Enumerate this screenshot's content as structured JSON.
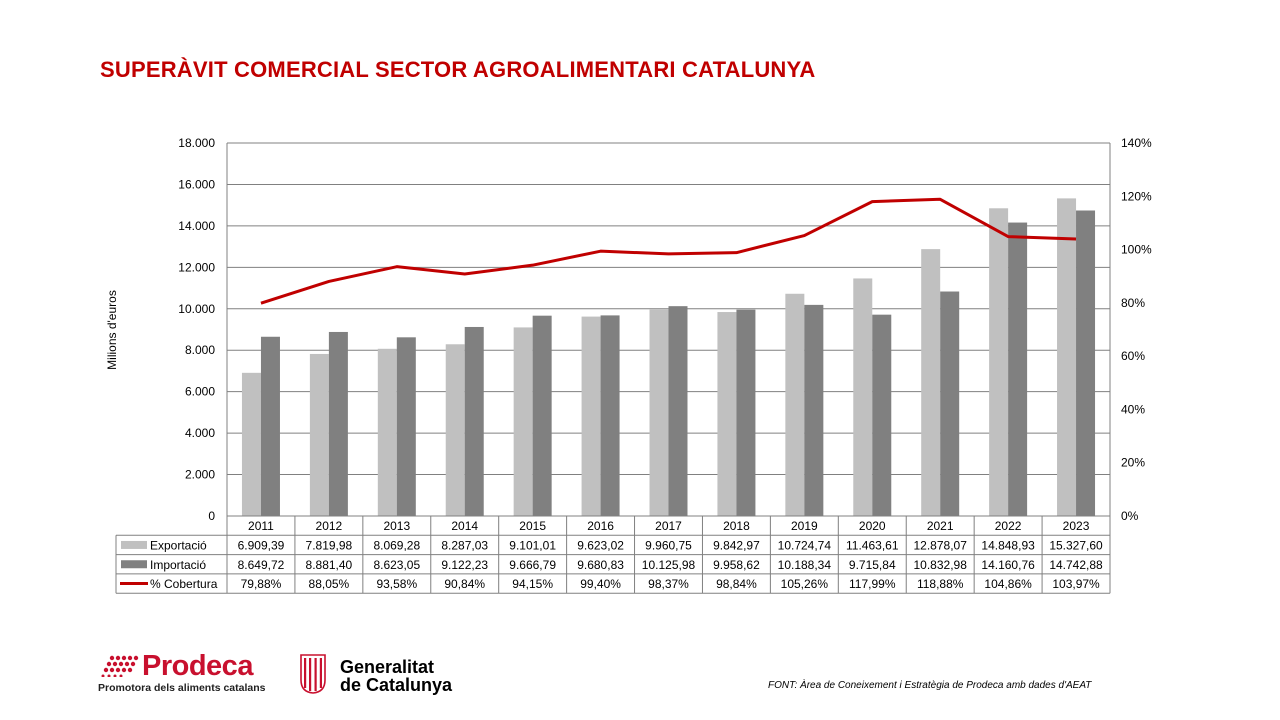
{
  "title": "SUPERÀVIT COMERCIAL SECTOR AGROALIMENTARI CATALUNYA",
  "source": "FONT:  Àrea de Coneixement i Estratègia de Prodeca amb dades d'AEAT",
  "logos": {
    "prodeca_name": "Prodeca",
    "prodeca_tagline": "Promotora dels aliments catalans",
    "gencat_line1": "Generalitat",
    "gencat_line2": "de Catalunya"
  },
  "colors": {
    "title": "#c00000",
    "exportacio": "#c0c0c0",
    "importacio": "#808080",
    "cobertura": "#c00000"
  },
  "chart_data": {
    "type": "bar",
    "ylabel": "Milions d'euros",
    "ylim": [
      0,
      18000
    ],
    "y_ticks": [
      "0",
      "2.000",
      "4.000",
      "6.000",
      "8.000",
      "10.000",
      "12.000",
      "14.000",
      "16.000",
      "18.000"
    ],
    "y2lim": [
      0,
      140
    ],
    "y2_ticks": [
      "0%",
      "20%",
      "40%",
      "60%",
      "80%",
      "100%",
      "120%",
      "140%"
    ],
    "grid": true,
    "categories": [
      "2011",
      "2012",
      "2013",
      "2014",
      "2015",
      "2016",
      "2017",
      "2018",
      "2019",
      "2020",
      "2021",
      "2022",
      "2023"
    ],
    "series": [
      {
        "name": "Exportació",
        "type": "bar",
        "values": [
          6909.39,
          7819.98,
          8069.28,
          8287.03,
          9101.01,
          9623.02,
          9960.75,
          9842.97,
          10724.74,
          11463.61,
          12878.07,
          14848.93,
          15327.6
        ],
        "labels": [
          "6.909,39",
          "7.819,98",
          "8.069,28",
          "8.287,03",
          "9.101,01",
          "9.623,02",
          "9.960,75",
          "9.842,97",
          "10.724,74",
          "11.463,61",
          "12.878,07",
          "14.848,93",
          "15.327,60"
        ]
      },
      {
        "name": "Importació",
        "type": "bar",
        "values": [
          8649.72,
          8881.4,
          8623.05,
          9122.23,
          9666.79,
          9680.83,
          10125.98,
          9958.62,
          10188.34,
          9715.84,
          10832.98,
          14160.76,
          14742.88
        ],
        "labels": [
          "8.649,72",
          "8.881,40",
          "8.623,05",
          "9.122,23",
          "9.666,79",
          "9.680,83",
          "10.125,98",
          "9.958,62",
          "10.188,34",
          "9.715,84",
          "10.832,98",
          "14.160,76",
          "14.742,88"
        ]
      },
      {
        "name": "% Cobertura",
        "type": "line",
        "axis": "right",
        "values": [
          79.88,
          88.05,
          93.58,
          90.84,
          94.15,
          99.4,
          98.37,
          98.84,
          105.26,
          117.99,
          118.88,
          104.86,
          103.97
        ],
        "labels": [
          "79,88%",
          "88,05%",
          "93,58%",
          "90,84%",
          "94,15%",
          "99,40%",
          "98,37%",
          "98,84%",
          "105,26%",
          "117,99%",
          "118,88%",
          "104,86%",
          "103,97%"
        ]
      }
    ]
  }
}
